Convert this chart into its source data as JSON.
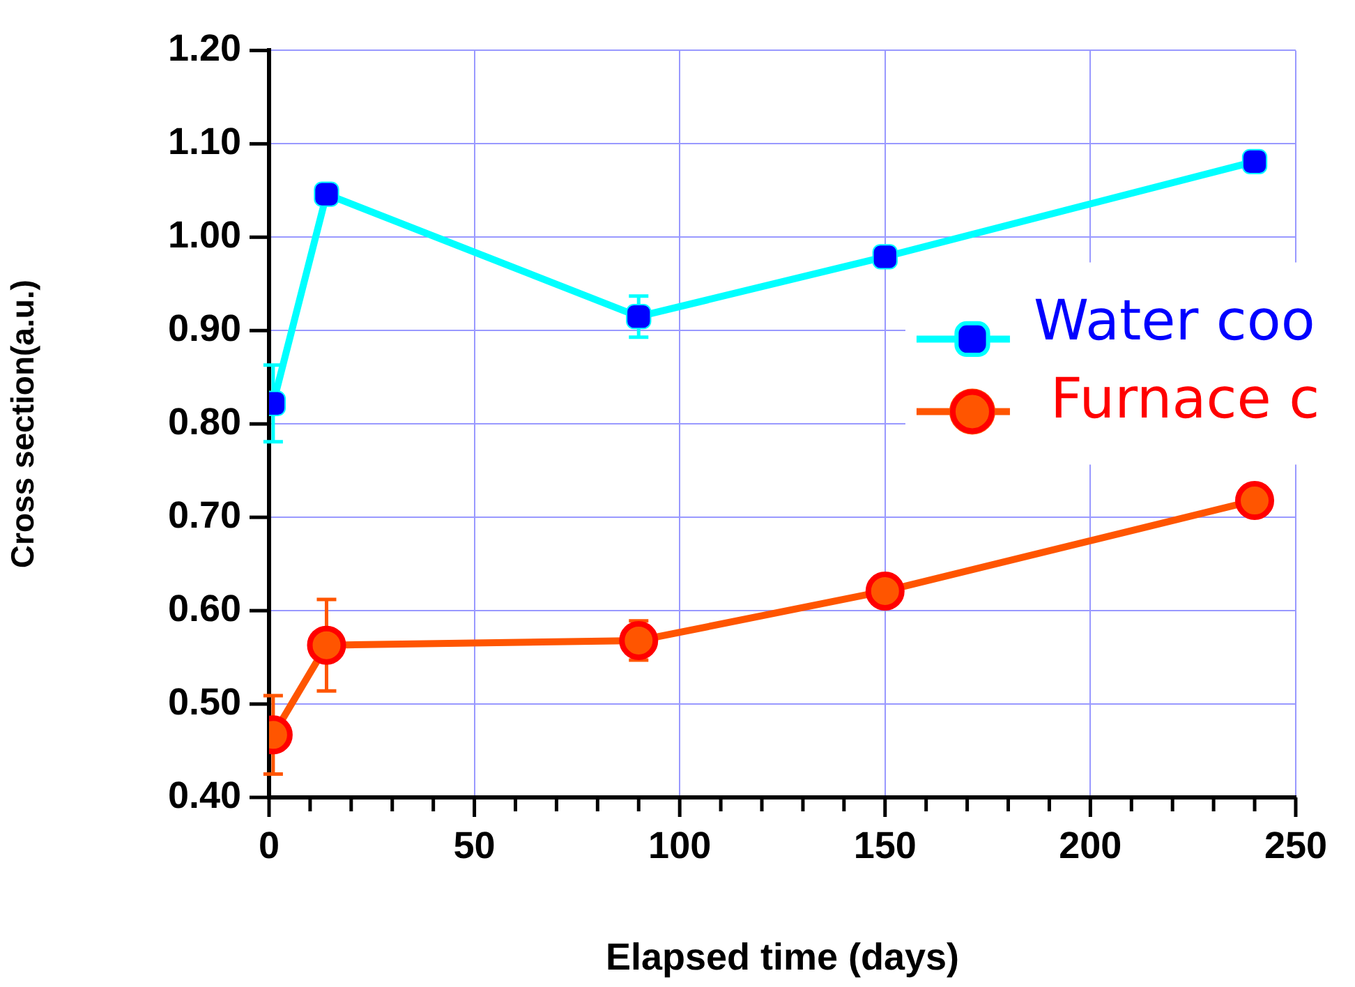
{
  "chart_data": {
    "type": "line",
    "xlabel": "Elapsed time (days)",
    "ylabel": "Cross section(a.u.)",
    "x": [
      1,
      14,
      90,
      150,
      240
    ],
    "xlim": [
      0,
      250
    ],
    "xticks": [
      0,
      {
        "value": 10,
        "label": null
      },
      {
        "value": 20,
        "label": null
      },
      {
        "value": 30,
        "label": null
      },
      {
        "value": 40,
        "label": null
      },
      50,
      {
        "value": 60,
        "label": null
      },
      {
        "value": 70,
        "label": null
      },
      {
        "value": 80,
        "label": null
      },
      {
        "value": 90,
        "label": null
      },
      100,
      {
        "value": 110,
        "label": null
      },
      {
        "value": 120,
        "label": null
      },
      {
        "value": 130,
        "label": null
      },
      {
        "value": 140,
        "label": null
      },
      150,
      {
        "value": 160,
        "label": null
      },
      {
        "value": 170,
        "label": null
      },
      {
        "value": 180,
        "label": null
      },
      {
        "value": 190,
        "label": null
      },
      200,
      {
        "value": 210,
        "label": null
      },
      {
        "value": 220,
        "label": null
      },
      {
        "value": 230,
        "label": null
      },
      {
        "value": 240,
        "label": null
      },
      250
    ],
    "ylim": [
      0.4,
      1.2
    ],
    "yticks": [
      {
        "value": 0.4,
        "label": "0.40"
      },
      {
        "value": 0.5,
        "label": "0.50"
      },
      {
        "value": 0.6,
        "label": "0.60"
      },
      {
        "value": 0.7,
        "label": "0.70"
      },
      {
        "value": 0.8,
        "label": "0.80"
      },
      {
        "value": 0.9,
        "label": "0.90"
      },
      {
        "value": 1.0,
        "label": "1.00"
      },
      {
        "value": 1.1,
        "label": "1.10"
      },
      {
        "value": 1.2,
        "label": "1.20"
      }
    ],
    "grid": true,
    "legend": "right",
    "line_style": "solid",
    "series": [
      {
        "name": "Water coo",
        "color": "#00ffff",
        "marker": "square",
        "colors": [
          "#0000ff",
          "#0000ff",
          "#0000ff",
          "#0000ff",
          "#0000ff"
        ],
        "values": [
          0.822,
          1.046,
          0.915,
          0.979,
          1.081
        ],
        "errors": [
          0.041,
          null,
          0.022,
          null,
          null
        ]
      },
      {
        "name": "Furnace c",
        "color": "#ff5500",
        "marker": "circle",
        "colors": [
          "#ff0000",
          "#ff0000",
          "#ff0000",
          "#ff0000",
          "#ff0000"
        ],
        "values": [
          0.467,
          0.563,
          0.568,
          0.621,
          0.718
        ],
        "errors": [
          0.042,
          0.049,
          0.021,
          null,
          null
        ]
      }
    ]
  }
}
